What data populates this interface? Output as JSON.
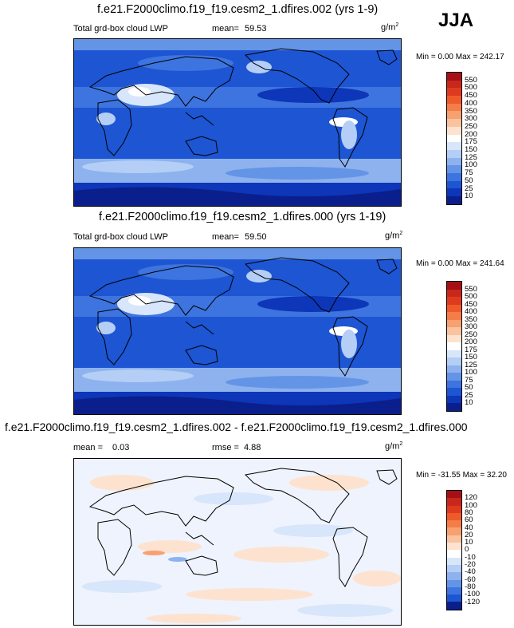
{
  "season": "JJA",
  "panels": [
    {
      "title": "f.e21.F2000climo.f19_f19.cesm2_1.dfires.002 (yrs 1-9)",
      "left_label": "Total grd-box cloud LWP",
      "mean_label": "mean=",
      "mean_value": "59.53",
      "units_base": "g/m",
      "units_exp": "2",
      "minmax": "Min =   0.00 Max = 242.17",
      "colorbar_ticks": [
        "550",
        "500",
        "450",
        "400",
        "350",
        "300",
        "250",
        "200",
        "175",
        "150",
        "125",
        "100",
        "75",
        "50",
        "25",
        "10"
      ],
      "colorbar_colors": [
        "#a50f15",
        "#c8281c",
        "#de3b1e",
        "#ef5a2a",
        "#f47d4a",
        "#f7a070",
        "#fac3a0",
        "#fde3cf",
        "#ffffff",
        "#d8e6fb",
        "#b4cef5",
        "#8db2ee",
        "#6494e6",
        "#3d74df",
        "#1d55d3",
        "#0d36b8",
        "#0a1f8c"
      ],
      "type": "lwp"
    },
    {
      "title": "f.e21.F2000climo.f19_f19.cesm2_1.dfires.000 (yrs 1-19)",
      "left_label": "Total grd-box cloud LWP",
      "mean_label": "mean=",
      "mean_value": "59.50",
      "units_base": "g/m",
      "units_exp": "2",
      "minmax": "Min =   0.00 Max = 241.64",
      "colorbar_ticks": [
        "550",
        "500",
        "450",
        "400",
        "350",
        "300",
        "250",
        "200",
        "175",
        "150",
        "125",
        "100",
        "75",
        "50",
        "25",
        "10"
      ],
      "colorbar_colors": [
        "#a50f15",
        "#c8281c",
        "#de3b1e",
        "#ef5a2a",
        "#f47d4a",
        "#f7a070",
        "#fac3a0",
        "#fde3cf",
        "#ffffff",
        "#d8e6fb",
        "#b4cef5",
        "#8db2ee",
        "#6494e6",
        "#3d74df",
        "#1d55d3",
        "#0d36b8",
        "#0a1f8c"
      ],
      "type": "lwp"
    },
    {
      "title": "f.e21.F2000climo.f19_f19.cesm2_1.dfires.002 - f.e21.F2000climo.f19_f19.cesm2_1.dfires.000",
      "mean_label": "mean =",
      "mean_value": "0.03",
      "rmse_label": "rmse =",
      "rmse_value": "4.88",
      "units_base": "g/m",
      "units_exp": "2",
      "minmax": "Min = -31.55 Max =  32.20",
      "colorbar_ticks": [
        "120",
        "100",
        "80",
        "60",
        "40",
        "20",
        "10",
        "0",
        "-10",
        "-20",
        "-40",
        "-60",
        "-80",
        "-100",
        "-120"
      ],
      "colorbar_colors": [
        "#a50f15",
        "#c8281c",
        "#de3b1e",
        "#ef5a2a",
        "#f47d4a",
        "#f7a070",
        "#fac3a0",
        "#fde3cf",
        "#ffffff",
        "#d8e6fb",
        "#b4cef5",
        "#8db2ee",
        "#6494e6",
        "#3d74df",
        "#1d55d3",
        "#0a1f8c"
      ],
      "type": "diff"
    }
  ]
}
